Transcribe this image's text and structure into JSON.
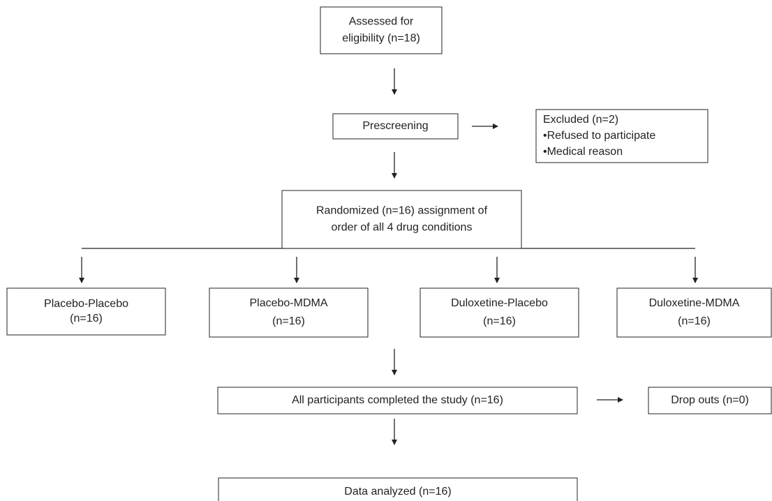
{
  "nodes": [
    {
      "lines": [
        "Assessed for",
        "eligibility (n=18)"
      ]
    },
    {
      "lines": [
        "Prescreening"
      ]
    },
    {
      "lines": [
        "Excluded (n=2)",
        "•Refused to participate",
        "•Medical reason"
      ]
    },
    {
      "lines": [
        "Randomized (n=16) assignment of",
        "order of all 4 drug conditions"
      ]
    },
    {
      "lines": [
        "Placebo-Placebo",
        "(n=16)"
      ]
    },
    {
      "lines": [
        "Placebo-MDMA",
        "(n=16)"
      ]
    },
    {
      "lines": [
        "Duloxetine-Placebo",
        "(n=16)"
      ]
    },
    {
      "lines": [
        "Duloxetine-MDMA",
        "(n=16)"
      ]
    },
    {
      "lines": [
        "All participants completed the study (n=16)"
      ]
    },
    {
      "lines": [
        "Drop outs (n=0)"
      ]
    },
    {
      "lines": [
        "Data analyzed (n=16)"
      ]
    }
  ]
}
